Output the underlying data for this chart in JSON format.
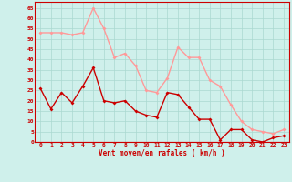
{
  "x": [
    0,
    1,
    2,
    3,
    4,
    5,
    6,
    7,
    8,
    9,
    10,
    11,
    12,
    13,
    14,
    15,
    16,
    17,
    18,
    19,
    20,
    21,
    22,
    23
  ],
  "wind_avg": [
    26,
    16,
    24,
    19,
    27,
    36,
    20,
    19,
    20,
    15,
    13,
    12,
    24,
    23,
    17,
    11,
    11,
    1,
    6,
    6,
    1,
    0,
    2,
    3
  ],
  "wind_gust": [
    53,
    53,
    53,
    52,
    53,
    65,
    55,
    41,
    43,
    37,
    25,
    24,
    31,
    46,
    41,
    41,
    30,
    27,
    18,
    10,
    6,
    5,
    4,
    6
  ],
  "bg_color": "#cff0eb",
  "grid_color": "#aad8d0",
  "avg_color": "#cc0000",
  "gust_color": "#ff9999",
  "xlabel": "Vent moyen/en rafales ( km/h )",
  "ylabel_ticks": [
    0,
    5,
    10,
    15,
    20,
    25,
    30,
    35,
    40,
    45,
    50,
    55,
    60,
    65
  ],
  "ylim": [
    0,
    68
  ],
  "xlim": [
    -0.5,
    23.5
  ],
  "marker_size": 2.0,
  "line_width": 1.0
}
